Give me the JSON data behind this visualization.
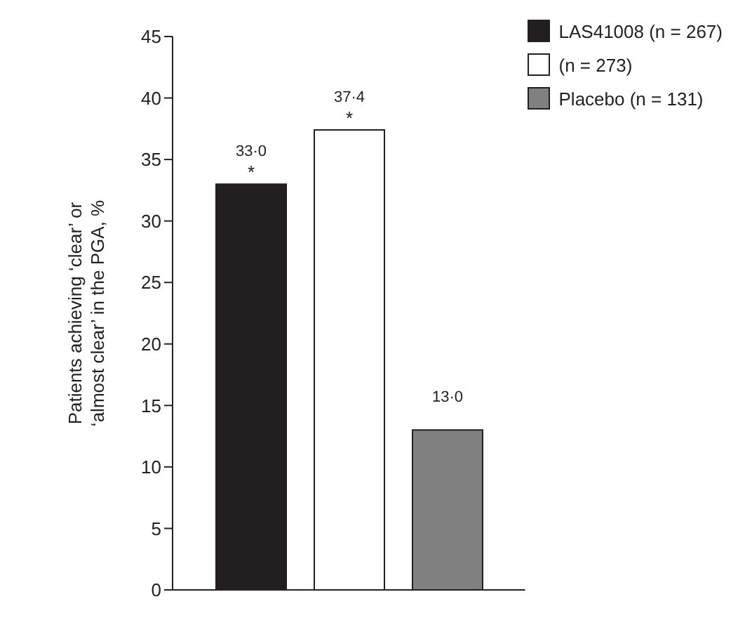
{
  "chart_data": {
    "type": "bar",
    "ylabel": "Patients achieving ‘clear’ or ‘almost clear’ in the PGA, %",
    "categories": [
      null
    ],
    "series": [
      {
        "name": "LAS41008 (n = 267)",
        "color": "#231f20",
        "values": [
          33.0
        ],
        "value_labels": [
          "33·0"
        ]
      },
      {
        "name": "(n = 273)",
        "color": "#ffffff",
        "values": [
          37.4
        ],
        "value_labels": [
          "37·4"
        ]
      },
      {
        "name": "Placebo (n = 131)",
        "color": "#808080",
        "values": [
          13.0
        ],
        "value_labels": [
          "13·0"
        ]
      }
    ],
    "annotations": [
      {
        "text": "*",
        "y": 33.0
      },
      {
        "text": "*",
        "y": 37.4
      }
    ],
    "ylim": [
      0,
      45
    ],
    "yticks": [
      0,
      5,
      10,
      15,
      20,
      25,
      30,
      35,
      40,
      45
    ],
    "grid": false,
    "legend": "top right"
  }
}
